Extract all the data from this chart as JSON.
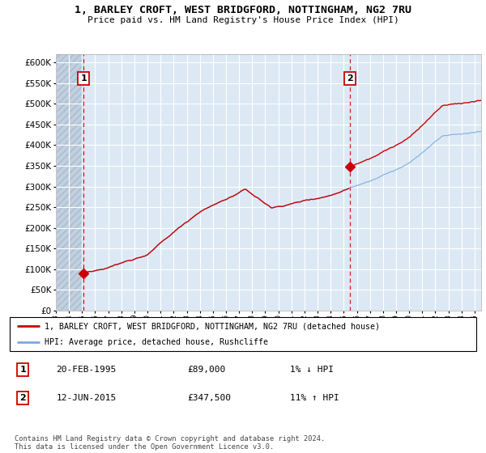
{
  "title_line1": "1, BARLEY CROFT, WEST BRIDGFORD, NOTTINGHAM, NG2 7RU",
  "title_line2": "Price paid vs. HM Land Registry's House Price Index (HPI)",
  "legend_line1": "1, BARLEY CROFT, WEST BRIDGFORD, NOTTINGHAM, NG2 7RU (detached house)",
  "legend_line2": "HPI: Average price, detached house, Rushcliffe",
  "footnote": "Contains HM Land Registry data © Crown copyright and database right 2024.\nThis data is licensed under the Open Government Licence v3.0.",
  "transaction1": {
    "label": "1",
    "date": "20-FEB-1995",
    "price": 89000,
    "hpi_change": "1% ↓ HPI",
    "year": 1995.12
  },
  "transaction2": {
    "label": "2",
    "date": "12-JUN-2015",
    "price": 347500,
    "hpi_change": "11% ↑ HPI",
    "year": 2015.45
  },
  "ylim": [
    0,
    620000
  ],
  "yticks": [
    0,
    50000,
    100000,
    150000,
    200000,
    250000,
    300000,
    350000,
    400000,
    450000,
    500000,
    550000,
    600000
  ],
  "xlim_start": 1993.0,
  "xlim_end": 2025.5,
  "background_plot": "#dce9f5",
  "background_hatch_left": "#c0d0e0",
  "grid_color": "#ffffff",
  "line_color_red": "#cc0000",
  "line_color_blue": "#7aaadd",
  "dashed_line_color": "#cc0000"
}
